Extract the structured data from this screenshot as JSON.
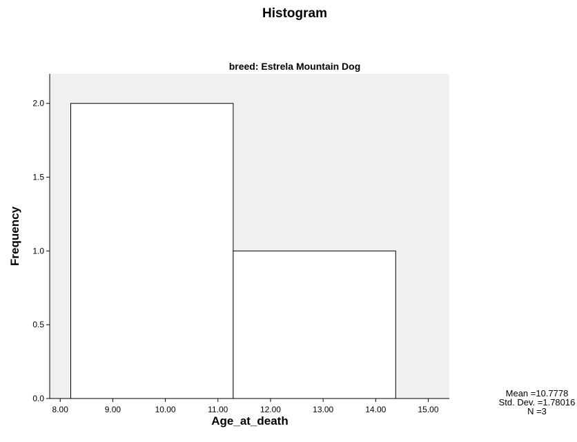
{
  "chart_data": {
    "type": "histogram",
    "title": "Histogram",
    "subtitle": "breed: Estrela Mountain Dog",
    "xlabel": "Age_at_death",
    "ylabel": "Frequency",
    "xlim": [
      7.8,
      15.4
    ],
    "ylim": [
      0,
      2.2
    ],
    "x_ticks": [
      "8.00",
      "9.00",
      "10.00",
      "11.00",
      "12.00",
      "13.00",
      "14.00",
      "15.00"
    ],
    "y_ticks": [
      "0.0",
      "0.5",
      "1.0",
      "1.5",
      "2.0"
    ],
    "bins": [
      {
        "start": 8.2,
        "end": 11.29,
        "count": 2
      },
      {
        "start": 11.29,
        "end": 14.38,
        "count": 1
      }
    ],
    "plot_background": "#f0f0f0",
    "bar_fill": "#ffffff",
    "bar_stroke": "#000000",
    "grid": false
  },
  "stats": {
    "mean": "Mean =10.7778",
    "std_dev": "Std. Dev. =1.78016",
    "n": "N =3"
  }
}
